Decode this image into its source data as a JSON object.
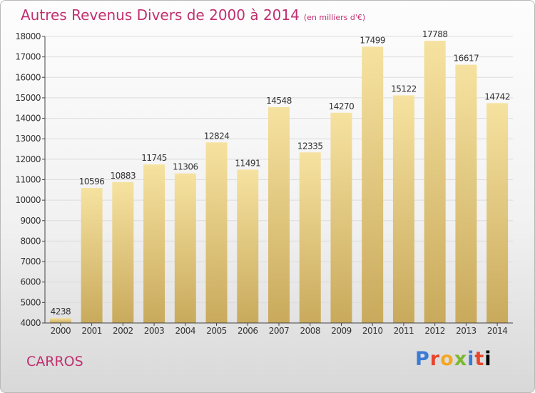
{
  "page": {
    "title": "Autres Revenus Divers de 2000 à 2014",
    "unit": "(en milliers d'€)",
    "city": "CARROS",
    "logo": "Proxiti"
  },
  "colors": {
    "title": "#c03070",
    "bar_top": "#f6e2a0",
    "bar_bottom": "#c9aa5c",
    "grid": "#dcdcdc",
    "axis": "#444444"
  },
  "chart_data": {
    "type": "bar",
    "title": "Autres Revenus Divers de 2000 à 2014",
    "subtitle": "(en milliers d'€)",
    "xlabel": "",
    "ylabel": "",
    "categories": [
      "2000",
      "2001",
      "2002",
      "2003",
      "2004",
      "2005",
      "2006",
      "2007",
      "2008",
      "2009",
      "2010",
      "2011",
      "2012",
      "2013",
      "2014"
    ],
    "values": [
      4238,
      10596,
      10883,
      11745,
      11306,
      12824,
      11491,
      14548,
      12335,
      14270,
      17499,
      15122,
      17788,
      16617,
      14742
    ],
    "ylim": [
      4000,
      18000
    ],
    "yticks": [
      4000,
      5000,
      6000,
      7000,
      8000,
      9000,
      10000,
      11000,
      12000,
      13000,
      14000,
      15000,
      16000,
      17000,
      18000
    ],
    "grid": true,
    "legend": "none"
  }
}
